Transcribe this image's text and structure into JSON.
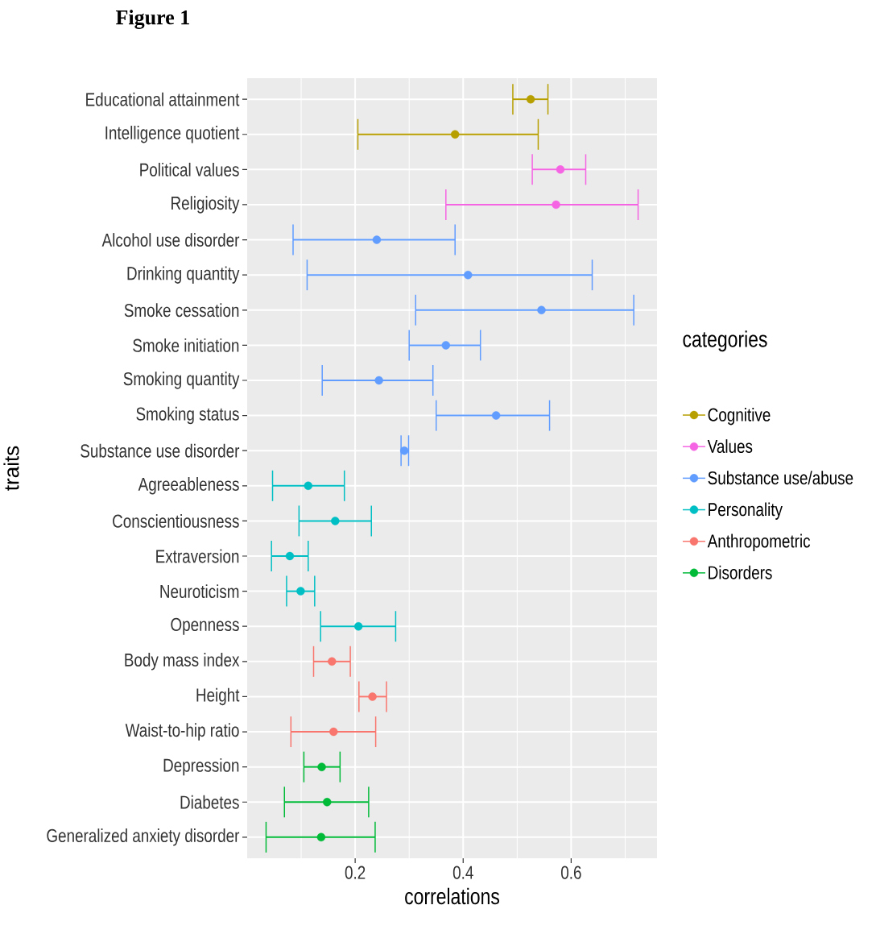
{
  "chart_data": {
    "type": "scatter",
    "orientation": "horizontal",
    "title": "Figure 1",
    "xlabel": "correlations",
    "ylabel": "traits",
    "legend_title": "categories",
    "legend": "right",
    "grid": true,
    "marker": "circle",
    "categories": [
      "Educational attainment",
      "Intelligence quotient",
      "Political values",
      "Religiosity",
      "Alcohol use disorder",
      "Drinking quantity",
      "Smoke cessation",
      "Smoke initiation",
      "Smoking quantity",
      "Smoking status",
      "Substance use disorder",
      "Agreeableness",
      "Conscientiousness",
      "Extraversion",
      "Neuroticism",
      "Openness",
      "Body mass index",
      "Height",
      "Waist-to-hip ratio",
      "Depression",
      "Diabetes",
      "Generalized anxiety disorder"
    ],
    "xlim": [
      0,
      0.759
    ],
    "xticks": [
      {
        "value": 0.1,
        "label": null
      },
      0.2,
      {
        "value": 0.3,
        "label": null
      },
      0.4,
      {
        "value": 0.5,
        "label": null
      },
      0.6,
      {
        "value": 0.7,
        "label": null
      }
    ],
    "series": [
      {
        "name": "Cognitive",
        "color": "#b79f00",
        "values": [
          0.525,
          0.385,
          null,
          null,
          null,
          null,
          null,
          null,
          null,
          null,
          null,
          null,
          null,
          null,
          null,
          null,
          null,
          null,
          null,
          null,
          null,
          null
        ],
        "errors": [
          [
            0.492,
            0.557
          ],
          [
            0.205,
            0.539
          ],
          null,
          null,
          null,
          null,
          null,
          null,
          null,
          null,
          null,
          null,
          null,
          null,
          null,
          null,
          null,
          null,
          null,
          null,
          null,
          null
        ]
      },
      {
        "name": "Values",
        "color": "#f564e3",
        "values": [
          null,
          null,
          0.58,
          0.572,
          null,
          null,
          null,
          null,
          null,
          null,
          null,
          null,
          null,
          null,
          null,
          null,
          null,
          null,
          null,
          null,
          null,
          null
        ],
        "errors": [
          null,
          null,
          [
            0.528,
            0.627
          ],
          [
            0.368,
            0.724
          ],
          null,
          null,
          null,
          null,
          null,
          null,
          null,
          null,
          null,
          null,
          null,
          null,
          null,
          null,
          null,
          null,
          null,
          null
        ]
      },
      {
        "name": "Substance use/abuse",
        "color": "#619cff",
        "values": [
          null,
          null,
          null,
          null,
          0.24,
          0.409,
          0.545,
          0.368,
          0.244,
          0.461,
          0.291,
          null,
          null,
          null,
          null,
          null,
          null,
          null,
          null,
          null,
          null,
          null
        ],
        "errors": [
          null,
          null,
          null,
          null,
          [
            0.085,
            0.385
          ],
          [
            0.111,
            0.639
          ],
          [
            0.312,
            0.716
          ],
          [
            0.3,
            0.432
          ],
          [
            0.139,
            0.344
          ],
          [
            0.35,
            0.56
          ],
          [
            0.285,
            0.299
          ],
          null,
          null,
          null,
          null,
          null,
          null,
          null,
          null,
          null,
          null,
          null
        ]
      },
      {
        "name": "Personality",
        "color": "#00bfc4",
        "values": [
          null,
          null,
          null,
          null,
          null,
          null,
          null,
          null,
          null,
          null,
          null,
          0.113,
          0.163,
          0.079,
          0.099,
          0.206,
          null,
          null,
          null,
          null,
          null,
          null
        ],
        "errors": [
          null,
          null,
          null,
          null,
          null,
          null,
          null,
          null,
          null,
          null,
          null,
          [
            0.047,
            0.18
          ],
          [
            0.096,
            0.23
          ],
          [
            0.045,
            0.113
          ],
          [
            0.073,
            0.125
          ],
          [
            0.136,
            0.275
          ],
          null,
          null,
          null,
          null,
          null,
          null
        ]
      },
      {
        "name": "Anthropometric",
        "color": "#f8766d",
        "values": [
          null,
          null,
          null,
          null,
          null,
          null,
          null,
          null,
          null,
          null,
          null,
          null,
          null,
          null,
          null,
          null,
          0.157,
          0.232,
          0.16,
          null,
          null,
          null
        ],
        "errors": [
          null,
          null,
          null,
          null,
          null,
          null,
          null,
          null,
          null,
          null,
          null,
          null,
          null,
          null,
          null,
          null,
          [
            0.123,
            0.191
          ],
          [
            0.207,
            0.258
          ],
          [
            0.081,
            0.238
          ],
          null,
          null,
          null
        ]
      },
      {
        "name": "Disorders",
        "color": "#00ba38",
        "values": [
          null,
          null,
          null,
          null,
          null,
          null,
          null,
          null,
          null,
          null,
          null,
          null,
          null,
          null,
          null,
          null,
          null,
          null,
          null,
          0.138,
          0.148,
          0.137
        ],
        "errors": [
          null,
          null,
          null,
          null,
          null,
          null,
          null,
          null,
          null,
          null,
          null,
          null,
          null,
          null,
          null,
          null,
          null,
          null,
          null,
          [
            0.105,
            0.172
          ],
          [
            0.069,
            0.225
          ],
          [
            0.035,
            0.237
          ]
        ]
      }
    ]
  }
}
